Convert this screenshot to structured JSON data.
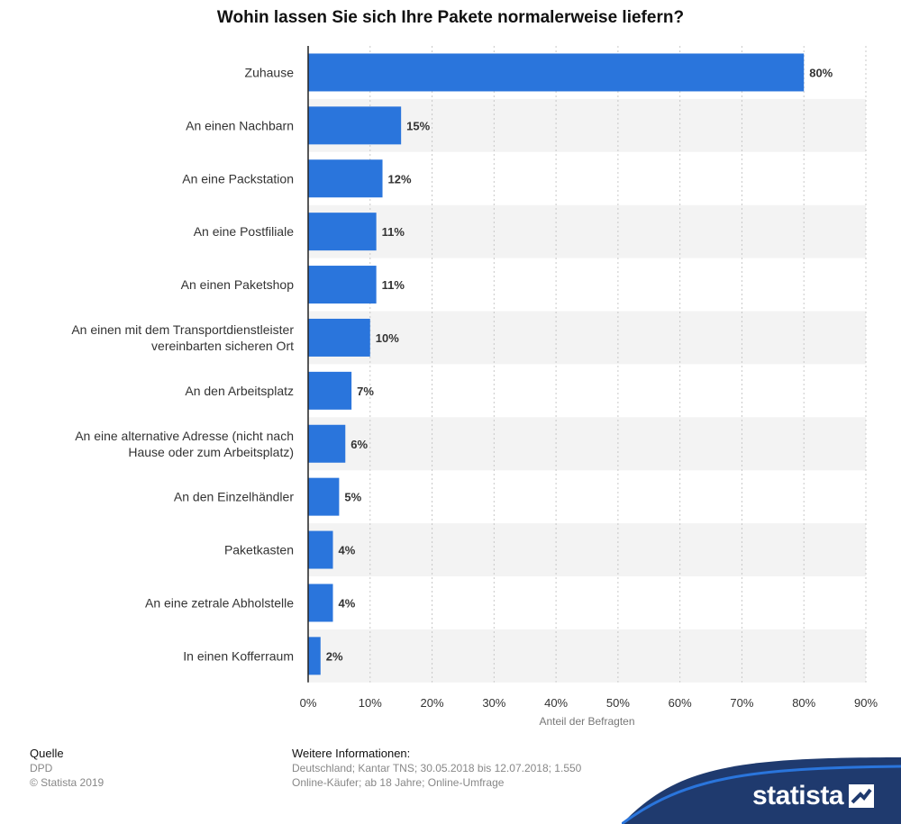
{
  "title": "Wohin lassen Sie sich Ihre Pakete normalerweise liefern?",
  "colors": {
    "bar": "#2a75dc",
    "band": "#f3f3f3",
    "accent": "#1f3a6e"
  },
  "chart_data": {
    "type": "bar",
    "orientation": "horizontal",
    "title": "Wohin lassen Sie sich Ihre Pakete normalerweise liefern?",
    "xlabel": "Anteil der Befragten",
    "xlim": [
      0,
      90
    ],
    "xticks": [
      "0%",
      "10%",
      "20%",
      "30%",
      "40%",
      "50%",
      "60%",
      "70%",
      "80%",
      "90%"
    ],
    "grid": true,
    "categories": [
      [
        "Zuhause"
      ],
      [
        "An einen Nachbarn"
      ],
      [
        "An eine Packstation"
      ],
      [
        "An eine Postfiliale"
      ],
      [
        "An einen Paketshop"
      ],
      [
        "An einen mit dem Transportdienstleister",
        "vereinbarten sicheren Ort"
      ],
      [
        "An den Arbeitsplatz"
      ],
      [
        "An eine alternative Adresse (nicht nach",
        "Hause oder zum Arbeitsplatz)"
      ],
      [
        "An den Einzelhändler"
      ],
      [
        "Paketkasten"
      ],
      [
        "An eine zetrale Abholstelle"
      ],
      [
        "In einen Kofferraum"
      ]
    ],
    "values": [
      80,
      15,
      12,
      11,
      11,
      10,
      7,
      6,
      5,
      4,
      4,
      2
    ],
    "value_labels": [
      "80%",
      "15%",
      "12%",
      "11%",
      "11%",
      "10%",
      "7%",
      "6%",
      "5%",
      "4%",
      "4%",
      "2%"
    ]
  },
  "footer": {
    "source_heading": "Quelle",
    "source_lines": [
      "DPD",
      "© Statista 2019"
    ],
    "info_heading": "Weitere Informationen:",
    "info_lines": [
      "Deutschland; Kantar TNS; 30.05.2018 bis 12.07.2018; 1.550",
      "Online-Käufer; ab 18 Jahre; Online-Umfrage"
    ]
  },
  "logo": {
    "text": "statista",
    "icon": "statista-logo-icon"
  }
}
